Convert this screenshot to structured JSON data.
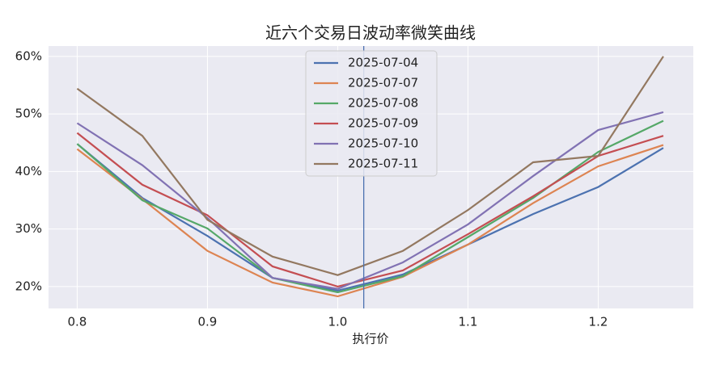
{
  "chart_data": {
    "type": "line",
    "title": "近六个交易日波动率微笑曲线",
    "xlabel": "执行价",
    "x": [
      0.8,
      0.85,
      0.9,
      0.95,
      1.0,
      1.05,
      1.1,
      1.15,
      1.2,
      1.25
    ],
    "series": [
      {
        "name": "2025-07-04",
        "color": "#4c72b0",
        "values": [
          44.8,
          35.4,
          28.8,
          21.5,
          19.3,
          22.1,
          27.3,
          32.6,
          37.3,
          44.1
        ]
      },
      {
        "name": "2025-07-07",
        "color": "#dd8452",
        "values": [
          43.9,
          35.2,
          26.2,
          20.7,
          18.3,
          21.7,
          27.3,
          34.5,
          40.9,
          44.6
        ]
      },
      {
        "name": "2025-07-08",
        "color": "#55a868",
        "values": [
          44.8,
          35.0,
          30.1,
          21.5,
          19.0,
          21.8,
          28.6,
          35.4,
          43.4,
          48.8
        ]
      },
      {
        "name": "2025-07-09",
        "color": "#c44e52",
        "values": [
          46.7,
          37.7,
          32.4,
          23.5,
          20.0,
          22.8,
          29.1,
          35.7,
          42.7,
          46.2
        ]
      },
      {
        "name": "2025-07-10",
        "color": "#8172b3",
        "values": [
          48.4,
          41.1,
          31.9,
          21.5,
          19.6,
          24.2,
          30.8,
          39.2,
          47.2,
          50.3
        ]
      },
      {
        "name": "2025-07-11",
        "color": "#937860",
        "values": [
          54.4,
          46.2,
          31.6,
          25.2,
          22.0,
          26.2,
          33.3,
          41.6,
          42.7,
          60.0
        ]
      }
    ],
    "vline": {
      "x": 1.02,
      "color": "#4c72b0"
    },
    "xlim": [
      0.778,
      1.273
    ],
    "xticks": [
      0.8,
      0.9,
      {
        "value": 1.0,
        "label": "1.0"
      },
      1.1,
      1.2
    ],
    "ylim": [
      16.2,
      61.8
    ],
    "yticks": [
      {
        "value": 20,
        "label": "20%"
      },
      {
        "value": 30,
        "label": "30%"
      },
      {
        "value": 40,
        "label": "40%"
      },
      {
        "value": 50,
        "label": "50%"
      },
      {
        "value": 60,
        "label": "60%"
      }
    ],
    "grid": true,
    "legend": "upper center"
  }
}
